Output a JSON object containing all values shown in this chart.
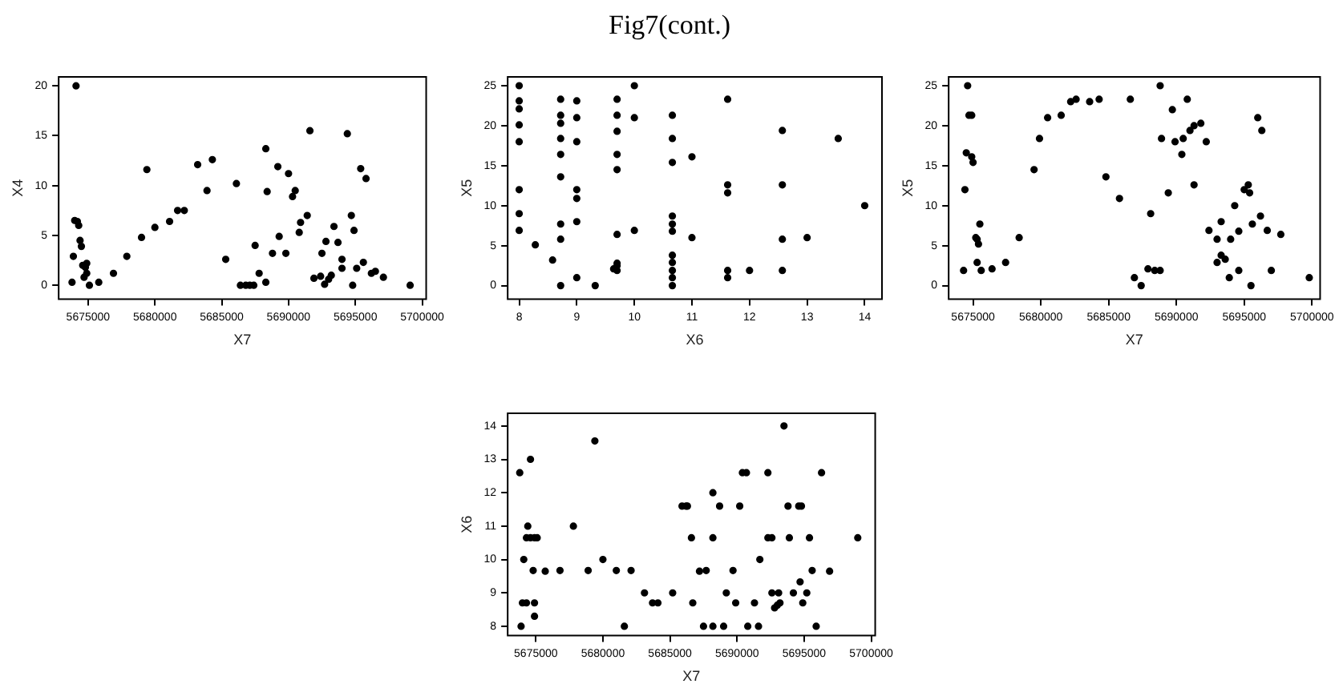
{
  "chart_data": [
    {
      "type": "scatter",
      "xlabel": "X7",
      "ylabel": "X4",
      "color": "#000000",
      "marker": "circle",
      "xlim": [
        5672800,
        5700300
      ],
      "xticks": [
        5675000,
        5680000,
        5685000,
        5690000,
        5695000,
        5700000
      ],
      "ylim": [
        -1.4,
        20.9
      ],
      "yticks": [
        0,
        5,
        10,
        15,
        20
      ],
      "x": [
        5674100,
        5673800,
        5673900,
        5674000,
        5674200,
        5674300,
        5674400,
        5674500,
        5674600,
        5674800,
        5674900,
        5674900,
        5674700,
        5675100,
        5675800,
        5676900,
        5677900,
        5679000,
        5679400,
        5680000,
        5681100,
        5681700,
        5682200,
        5683200,
        5683900,
        5684300,
        5685300,
        5686100,
        5686400,
        5686800,
        5687100,
        5687400,
        5687500,
        5687800,
        5688300,
        5688400,
        5688300,
        5688800,
        5689200,
        5689300,
        5689800,
        5690000,
        5690300,
        5690500,
        5690800,
        5690900,
        5691400,
        5691600,
        5691900,
        5692400,
        5692500,
        5692700,
        5692800,
        5693000,
        5693200,
        5693400,
        5693700,
        5694000,
        5694000,
        5694400,
        5694700,
        5694800,
        5694900,
        5695100,
        5695400,
        5695600,
        5695800,
        5696200,
        5696500,
        5697100,
        5699100
      ],
      "values": [
        20,
        0.3,
        2.9,
        6.5,
        6.4,
        6.0,
        4.5,
        3.9,
        2.0,
        1.8,
        2.2,
        1.2,
        0.8,
        0,
        0.3,
        1.2,
        2.9,
        4.8,
        11.6,
        5.8,
        6.4,
        7.5,
        7.5,
        12.1,
        9.5,
        12.6,
        2.6,
        10.2,
        0,
        0,
        0,
        0,
        4.0,
        1.2,
        13.7,
        9.4,
        0.3,
        3.2,
        11.9,
        4.9,
        3.2,
        11.2,
        8.9,
        9.5,
        5.3,
        6.3,
        7.0,
        15.5,
        0.7,
        0.9,
        3.2,
        0.1,
        4.4,
        0.6,
        1.0,
        5.9,
        4.3,
        2.6,
        1.7,
        15.2,
        7.0,
        0,
        5.5,
        1.7,
        11.7,
        2.3,
        10.7,
        1.2,
        1.4,
        0.8,
        0
      ]
    },
    {
      "type": "scatter",
      "title": "Fig7(cont.)",
      "xlabel": "X6",
      "ylabel": "X5",
      "color": "#000000",
      "marker": "circle",
      "xlim": [
        7.8,
        14.3
      ],
      "xticks": [
        8,
        9,
        10,
        11,
        12,
        13,
        14
      ],
      "ylim": [
        -1.7,
        26.1
      ],
      "yticks": [
        0,
        5,
        10,
        15,
        20,
        25
      ],
      "x": [
        8,
        8,
        8,
        8,
        8,
        8,
        8,
        8,
        8.28,
        8.58,
        8.72,
        8.72,
        8.72,
        8.72,
        8.72,
        8.72,
        8.72,
        8.72,
        8.72,
        9,
        9,
        9,
        9,
        9,
        9,
        9,
        9.32,
        9.7,
        9.7,
        9.7,
        9.7,
        9.7,
        9.7,
        9.7,
        9.7,
        9.64,
        9.7,
        10,
        10,
        10,
        10.66,
        10.66,
        10.66,
        10.66,
        10.66,
        10.66,
        10.66,
        10.66,
        10.66,
        10.66,
        10.66,
        11,
        11,
        11.62,
        11.62,
        11.62,
        11.62,
        11.62,
        12,
        12.57,
        12.57,
        12.57,
        12.57,
        13,
        13.54,
        14
      ],
      "values": [
        25,
        23.1,
        22.1,
        20.1,
        18.0,
        12.0,
        9.0,
        6.9,
        5.1,
        3.2,
        23.3,
        21.3,
        20.3,
        18.4,
        16.4,
        13.6,
        7.7,
        5.8,
        0,
        23.1,
        21.0,
        18.0,
        12.0,
        10.9,
        8.0,
        1.0,
        0,
        23.3,
        21.3,
        19.3,
        16.4,
        14.5,
        6.4,
        2.8,
        2.5,
        2.1,
        1.9,
        25,
        21.0,
        6.9,
        21.3,
        18.4,
        15.4,
        8.7,
        7.7,
        6.8,
        3.8,
        2.9,
        1.9,
        1.0,
        0,
        16.1,
        6.0,
        23.3,
        12.6,
        11.6,
        1.9,
        1.0,
        1.9,
        19.4,
        12.6,
        5.8,
        1.9,
        6.0,
        18.4,
        10.0
      ]
    },
    {
      "type": "scatter",
      "xlabel": "X7",
      "ylabel": "X5",
      "color": "#000000",
      "marker": "circle",
      "xlim": [
        5673200,
        5700600
      ],
      "xticks": [
        5675000,
        5680000,
        5685000,
        5690000,
        5695000,
        5700000
      ],
      "ylim": [
        -1.7,
        26.1
      ],
      "yticks": [
        0,
        5,
        10,
        15,
        20,
        25
      ],
      "x": [
        5674300,
        5674400,
        5674500,
        5674600,
        5674700,
        5674900,
        5674900,
        5675000,
        5675200,
        5675300,
        5675400,
        5675500,
        5675300,
        5675600,
        5676400,
        5677400,
        5678400,
        5679500,
        5679900,
        5680500,
        5681500,
        5682200,
        5682600,
        5683600,
        5684300,
        5684800,
        5685800,
        5686600,
        5686900,
        5687400,
        5687900,
        5688100,
        5688400,
        5688800,
        5688800,
        5688900,
        5689400,
        5689700,
        5689900,
        5690400,
        5690500,
        5690800,
        5691000,
        5691300,
        5691800,
        5692200,
        5691300,
        5692400,
        5693000,
        5693000,
        5693300,
        5693300,
        5693600,
        5693900,
        5694000,
        5694300,
        5694600,
        5694600,
        5695000,
        5695300,
        5695400,
        5695500,
        5695600,
        5696000,
        5696200,
        5696300,
        5696700,
        5697000,
        5697700,
        5699800
      ],
      "values": [
        1.9,
        12.0,
        16.6,
        25,
        21.3,
        21.3,
        16.1,
        15.4,
        6.0,
        5.8,
        5.2,
        7.7,
        2.9,
        1.9,
        2.1,
        2.9,
        6.0,
        14.5,
        18.4,
        21.0,
        21.3,
        23.0,
        23.3,
        23.0,
        23.3,
        13.6,
        10.9,
        23.3,
        1.0,
        0,
        2.1,
        9.0,
        1.9,
        1.9,
        25,
        18.4,
        11.6,
        22.0,
        18.0,
        16.4,
        18.4,
        23.3,
        19.4,
        20.0,
        20.3,
        18.0,
        12.6,
        6.9,
        2.9,
        5.8,
        8.0,
        3.8,
        3.3,
        1.0,
        5.8,
        10.0,
        6.8,
        1.9,
        12.0,
        12.6,
        11.6,
        0,
        7.7,
        21.0,
        8.7,
        19.4,
        6.9,
        1.9,
        6.4,
        1.0
      ]
    },
    {
      "type": "scatter",
      "xlabel": "X7",
      "ylabel": "X6",
      "color": "#000000",
      "marker": "circle",
      "xlim": [
        5672900,
        5700300
      ],
      "xticks": [
        5675000,
        5680000,
        5685000,
        5690000,
        5695000,
        5700000
      ],
      "ylim": [
        7.72,
        14.38
      ],
      "yticks": [
        8,
        9,
        10,
        11,
        12,
        13,
        14
      ],
      "x": [
        5673800,
        5673900,
        5674100,
        5674000,
        5674300,
        5674300,
        5674600,
        5674900,
        5674400,
        5674600,
        5674800,
        5674900,
        5674900,
        5675100,
        5675700,
        5676800,
        5677800,
        5678900,
        5679400,
        5680000,
        5681000,
        5681600,
        5682100,
        5683100,
        5683700,
        5684100,
        5685200,
        5685900,
        5686200,
        5686300,
        5686600,
        5686700,
        5687200,
        5687700,
        5687500,
        5688200,
        5688200,
        5688200,
        5688700,
        5689000,
        5689200,
        5689700,
        5689900,
        5690200,
        5690400,
        5690700,
        5690800,
        5691300,
        5691600,
        5691700,
        5692300,
        5692300,
        5692600,
        5692600,
        5693100,
        5692800,
        5693000,
        5693200,
        5693500,
        5693800,
        5693900,
        5694200,
        5694600,
        5694800,
        5694700,
        5694900,
        5695200,
        5695400,
        5695600,
        5695900,
        5696300,
        5696900,
        5699000
      ],
      "values": [
        12.6,
        8,
        10.0,
        8.7,
        8.7,
        10.65,
        10.65,
        10.65,
        11.0,
        13.0,
        9.67,
        8.7,
        8.3,
        10.65,
        9.65,
        9.67,
        11.0,
        9.67,
        13.55,
        10.0,
        9.67,
        8,
        9.67,
        9.0,
        8.7,
        8.7,
        9.0,
        11.6,
        11.6,
        11.6,
        10.65,
        8.7,
        9.65,
        9.67,
        8,
        12.0,
        10.65,
        8,
        11.6,
        8,
        9.0,
        9.67,
        8.7,
        11.6,
        12.6,
        12.6,
        8,
        8.7,
        8,
        10.0,
        12.6,
        10.65,
        10.65,
        9.0,
        9.0,
        8.55,
        8.63,
        8.7,
        14,
        11.6,
        10.65,
        9.0,
        11.6,
        11.6,
        9.33,
        8.7,
        9.0,
        10.65,
        9.67,
        8,
        12.6,
        9.65,
        10.65
      ]
    }
  ]
}
